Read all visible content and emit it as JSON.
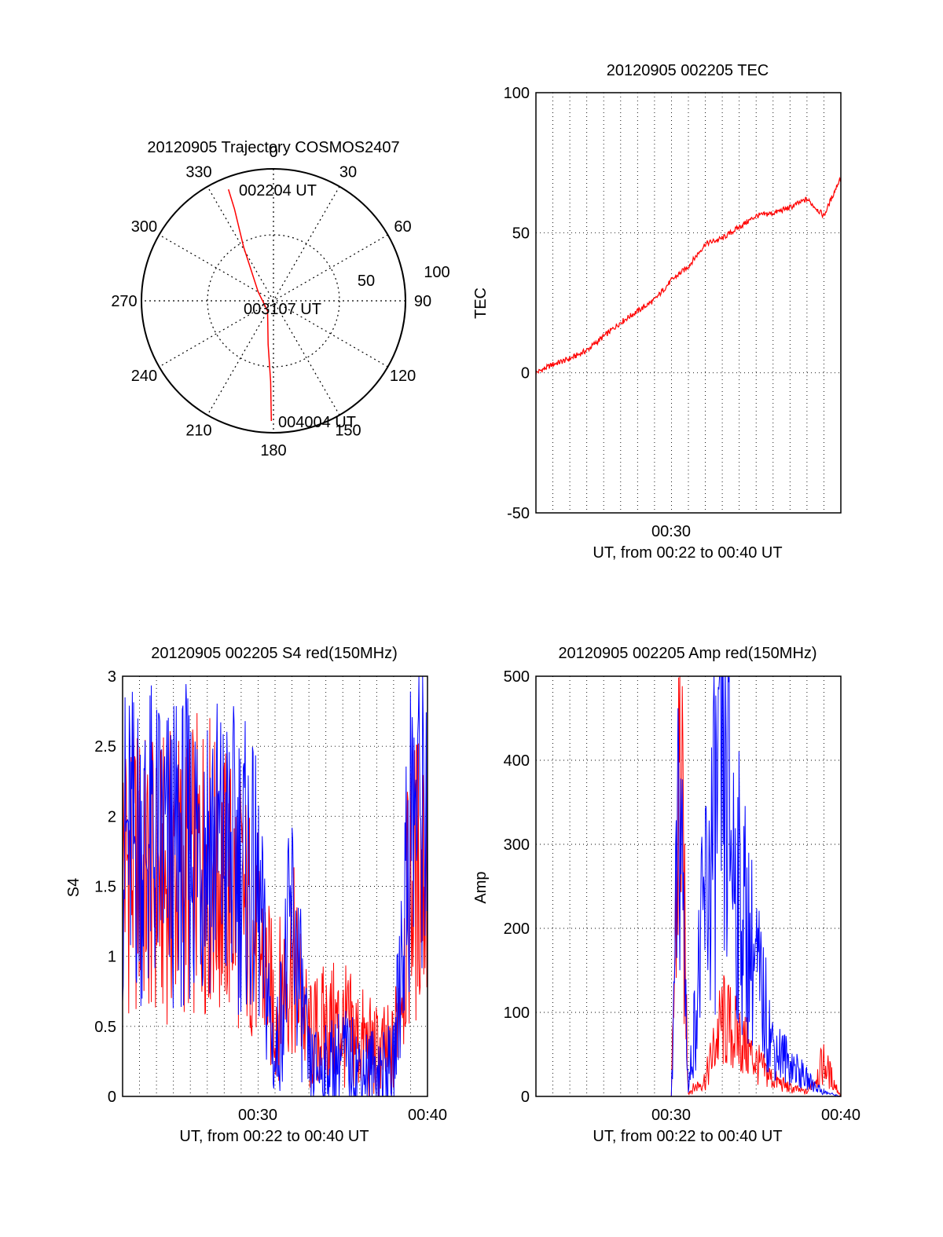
{
  "figure": {
    "colors": {
      "red": "#ff0000",
      "blue": "#0000ff",
      "axis": "#000000",
      "grid": "#000000"
    }
  },
  "chart_data": [
    {
      "type": "polar",
      "title": "20120905 Trajectory COSMOS2407",
      "angle_tick_labels": [
        "0",
        "30",
        "60",
        "90",
        "120",
        "150",
        "180",
        "210",
        "240",
        "270",
        "300",
        "330"
      ],
      "radial_ring_labels": [
        "50",
        "100"
      ],
      "annotations": [
        "002204 UT",
        "003107 UT",
        "004004 UT"
      ],
      "series": [
        {
          "color": "#ff0000",
          "points": [
            {
              "azimuth": 338,
              "elevation": 8
            },
            {
              "azimuth": 337,
              "elevation": 22
            },
            {
              "azimuth": 331,
              "elevation": 48
            },
            {
              "azimuth": 300,
              "elevation": 78
            },
            {
              "azimuth": 210,
              "elevation": 82
            },
            {
              "azimuth": 187,
              "elevation": 60
            },
            {
              "azimuth": 182,
              "elevation": 35
            },
            {
              "azimuth": 181,
              "elevation": 8
            }
          ]
        }
      ]
    },
    {
      "type": "line",
      "title": "20120905 002205 TEC",
      "xlabel": "UT, from 00:22 to 00:40 UT",
      "ylabel": "TEC",
      "xlim": [
        "00:22",
        "00:40"
      ],
      "x_tick_labels": [
        "00:30"
      ],
      "ylim": [
        -50,
        100
      ],
      "y_tick_labels": [
        "-50",
        "0",
        "50",
        "100"
      ],
      "grid": true,
      "series": [
        {
          "color": "#ff0000",
          "x": [
            "00:22",
            "00:23",
            "00:24",
            "00:25",
            "00:26",
            "00:27",
            "00:28",
            "00:29",
            "00:30",
            "00:31",
            "00:32",
            "00:33",
            "00:34",
            "00:35",
            "00:36",
            "00:37",
            "00:38",
            "00:39",
            "00:40"
          ],
          "y": [
            0,
            3,
            5,
            8,
            13,
            18,
            22,
            26,
            33,
            38,
            46,
            48,
            52,
            56,
            57,
            59,
            62,
            56,
            70
          ]
        }
      ]
    },
    {
      "type": "line",
      "title": "20120905 002205 S4 red(150MHz)",
      "xlabel": "UT, from 00:22 to 00:40 UT",
      "ylabel": "S4",
      "xlim": [
        "00:22",
        "00:40"
      ],
      "x_tick_labels": [
        "00:30",
        "00:40"
      ],
      "ylim": [
        0,
        3
      ],
      "y_tick_labels": [
        "0",
        "0.5",
        "1",
        "1.5",
        "2",
        "2.5",
        "3"
      ],
      "grid": true,
      "series": [
        {
          "color": "#ff0000",
          "x": [
            "00:22",
            "00:23",
            "00:24",
            "00:25",
            "00:26",
            "00:27",
            "00:28",
            "00:29",
            "00:30",
            "00:31",
            "00:32",
            "00:33",
            "00:34",
            "00:35",
            "00:36",
            "00:37",
            "00:38",
            "00:39",
            "00:40"
          ],
          "y": [
            1.7,
            1.6,
            1.5,
            1.6,
            1.6,
            1.7,
            1.5,
            1.4,
            1.1,
            0.6,
            1.0,
            0.4,
            0.5,
            0.5,
            0.4,
            0.3,
            0.3,
            1.5,
            1.7
          ]
        },
        {
          "color": "#0000ff",
          "x": [
            "00:22",
            "00:23",
            "00:24",
            "00:25",
            "00:26",
            "00:27",
            "00:28",
            "00:29",
            "00:30",
            "00:31",
            "00:32",
            "00:33",
            "00:34",
            "00:35",
            "00:36",
            "00:37",
            "00:38",
            "00:39",
            "00:40"
          ],
          "y": [
            1.8,
            1.8,
            1.8,
            1.7,
            1.8,
            1.9,
            1.7,
            1.7,
            1.4,
            0.2,
            1.3,
            0.2,
            0.2,
            0.3,
            0.2,
            0.2,
            0.2,
            2.0,
            2.2
          ]
        }
      ]
    },
    {
      "type": "line",
      "title": "20120905 002205 Amp red(150MHz)",
      "xlabel": "UT, from 00:22 to 00:40 UT",
      "ylabel": "Amp",
      "xlim": [
        "00:22",
        "00:40"
      ],
      "x_tick_labels": [
        "00:30",
        "00:40"
      ],
      "ylim": [
        0,
        500
      ],
      "y_tick_labels": [
        "0",
        "100",
        "200",
        "300",
        "400",
        "500"
      ],
      "grid": true,
      "series": [
        {
          "color": "#ff0000",
          "x": [
            "00:22",
            "00:26",
            "00:29",
            "00:30",
            "00:30.5",
            "00:31",
            "00:32",
            "00:33",
            "00:34",
            "00:35",
            "00:36",
            "00:37",
            "00:38",
            "00:39",
            "00:40"
          ],
          "y": [
            0,
            0,
            0,
            0,
            410,
            5,
            20,
            90,
            70,
            40,
            20,
            10,
            5,
            40,
            0
          ]
        },
        {
          "color": "#0000ff",
          "x": [
            "00:22",
            "00:26",
            "00:29",
            "00:30",
            "00:30.5",
            "00:31",
            "00:32",
            "00:33",
            "00:34",
            "00:35",
            "00:36",
            "00:37",
            "00:38",
            "00:39",
            "00:40"
          ],
          "y": [
            0,
            0,
            0,
            0,
            370,
            5,
            230,
            380,
            240,
            150,
            60,
            40,
            20,
            5,
            0
          ]
        }
      ]
    }
  ]
}
